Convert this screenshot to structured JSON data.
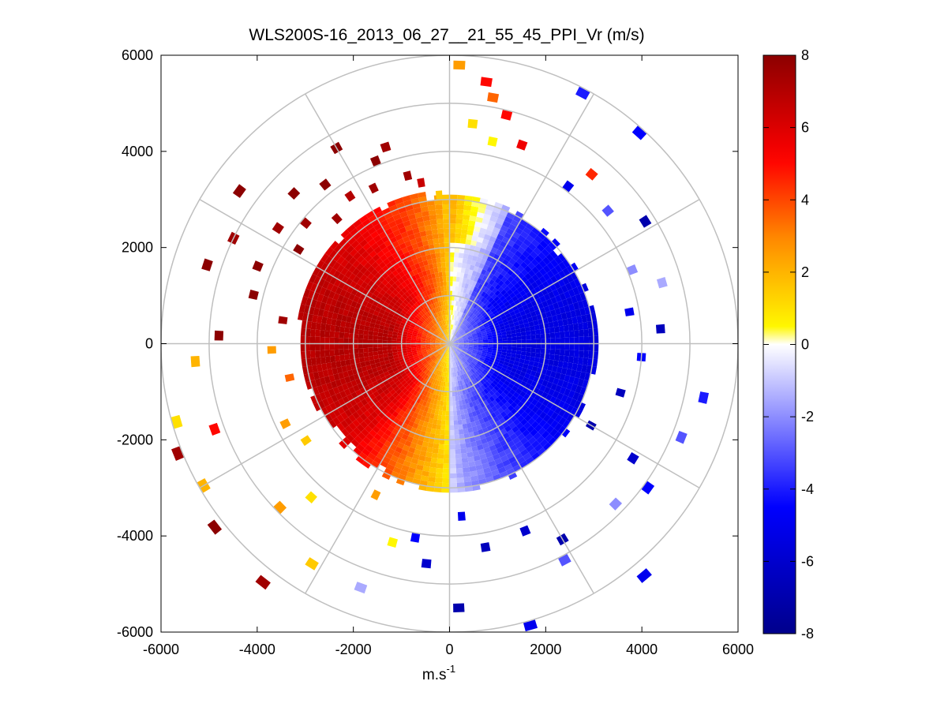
{
  "chart_data": {
    "type": "heatmap",
    "subtype": "polar PPI radial velocity scan",
    "title": "WLS200S-16_2013_06_27__21_55_45_PPI_Vr (m/s)",
    "xlabel": "m.s",
    "xlabel_superscript": "-1",
    "ylabel": "",
    "xlim": [
      -6000,
      6000
    ],
    "ylim": [
      -6000,
      6000
    ],
    "x_ticks": [
      "-6000",
      "-4000",
      "-2000",
      "0",
      "2000",
      "4000",
      "6000"
    ],
    "y_ticks": [
      "6000",
      "4000",
      "2000",
      "0",
      "-2000",
      "-4000",
      "-6000"
    ],
    "x_tick_values": [
      -6000,
      -4000,
      -2000,
      0,
      2000,
      4000,
      6000
    ],
    "y_tick_values": [
      6000,
      4000,
      2000,
      0,
      -2000,
      -4000,
      -6000
    ],
    "range_rings_m": [
      1000,
      2000,
      3000,
      4000,
      5000,
      6000
    ],
    "spoke_angles_deg": [
      0,
      30,
      60,
      90,
      120,
      150,
      180,
      210,
      240,
      270,
      300,
      330
    ],
    "grid": true,
    "colorbar": {
      "min": -8,
      "max": 8,
      "ticks": [
        "8",
        "6",
        "4",
        "2",
        "0",
        "-2",
        "-4",
        "-6",
        "-8"
      ],
      "tick_values": [
        8,
        6,
        4,
        2,
        0,
        -2,
        -4,
        -6,
        -8
      ],
      "colors": [
        "#00008c",
        "#0000ff",
        "#ffffff",
        "#ffff00",
        "#ff8c00",
        "#ff0000",
        "#8c0000"
      ]
    },
    "dense_region": {
      "max_range_m": 3050,
      "description": "positive velocities on the west/north-west half, negative on the east/south-east half",
      "zero_line_azimuth_deg": [
        0,
        180
      ],
      "max_velocity_west_mps": 7,
      "min_velocity_east_mps": -5.5
    },
    "sparse_gates": [
      {
        "az": 2,
        "r": 5800,
        "v": 2.5
      },
      {
        "az": 6,
        "r": 4600,
        "v": 1
      },
      {
        "az": 8,
        "r": 5500,
        "v": 5
      },
      {
        "az": 10,
        "r": 5200,
        "v": 3.5
      },
      {
        "az": 12,
        "r": 4300,
        "v": 0.5
      },
      {
        "az": 14,
        "r": 4900,
        "v": 5
      },
      {
        "az": 20,
        "r": 4400,
        "v": 5.5
      },
      {
        "az": 28,
        "r": 5900,
        "v": -4
      },
      {
        "az": 37,
        "r": 4100,
        "v": -5
      },
      {
        "az": 40,
        "r": 4600,
        "v": 4.5
      },
      {
        "az": 42,
        "r": 5900,
        "v": -4.5
      },
      {
        "az": 50,
        "r": 4300,
        "v": -3
      },
      {
        "az": 58,
        "r": 4800,
        "v": -7
      },
      {
        "az": 68,
        "r": 4100,
        "v": -2
      },
      {
        "az": 74,
        "r": 4600,
        "v": -1.5
      },
      {
        "az": 80,
        "r": 3800,
        "v": -5
      },
      {
        "az": 86,
        "r": 4400,
        "v": -6.5
      },
      {
        "az": 94,
        "r": 4000,
        "v": -4.5
      },
      {
        "az": 102,
        "r": 5400,
        "v": -4
      },
      {
        "az": 106,
        "r": 3700,
        "v": -6.5
      },
      {
        "az": 112,
        "r": 5200,
        "v": -3
      },
      {
        "az": 120,
        "r": 3400,
        "v": -7
      },
      {
        "az": 122,
        "r": 4500,
        "v": -6
      },
      {
        "az": 126,
        "r": 5100,
        "v": -4.5
      },
      {
        "az": 134,
        "r": 4800,
        "v": -2
      },
      {
        "az": 140,
        "r": 6300,
        "v": -5
      },
      {
        "az": 150,
        "r": 4700,
        "v": -7
      },
      {
        "az": 152,
        "r": 5100,
        "v": -3
      },
      {
        "az": 158,
        "r": 4200,
        "v": -6
      },
      {
        "az": 164,
        "r": 6100,
        "v": -5
      },
      {
        "az": 170,
        "r": 4300,
        "v": -6.5
      },
      {
        "az": 176,
        "r": 3600,
        "v": -5
      },
      {
        "az": 178,
        "r": 5500,
        "v": -7
      },
      {
        "az": 186,
        "r": 4600,
        "v": -6
      },
      {
        "az": 190,
        "r": 4100,
        "v": -4.5
      },
      {
        "az": 196,
        "r": 4300,
        "v": 0.5
      },
      {
        "az": 200,
        "r": 5400,
        "v": -1.5
      },
      {
        "az": 206,
        "r": 3500,
        "v": 2.5
      },
      {
        "az": 212,
        "r": 5400,
        "v": 1.5
      },
      {
        "az": 218,
        "r": 6300,
        "v": 7.5
      },
      {
        "az": 222,
        "r": 4300,
        "v": 1
      },
      {
        "az": 226,
        "r": 4900,
        "v": 2.5
      },
      {
        "az": 232,
        "r": 6200,
        "v": 8
      },
      {
        "az": 236,
        "r": 3600,
        "v": 1.5
      },
      {
        "az": 240,
        "r": 5900,
        "v": 2
      },
      {
        "az": 244,
        "r": 3800,
        "v": 2.5
      },
      {
        "az": 248,
        "r": 6100,
        "v": 7.5
      },
      {
        "az": 250,
        "r": 5200,
        "v": 5
      },
      {
        "az": 254,
        "r": 5900,
        "v": 1
      },
      {
        "az": 258,
        "r": 3400,
        "v": 3.5
      },
      {
        "az": 266,
        "r": 5300,
        "v": 2
      },
      {
        "az": 268,
        "r": 3700,
        "v": 2.5
      },
      {
        "az": 272,
        "r": 4800,
        "v": 8
      },
      {
        "az": 278,
        "r": 3500,
        "v": 7.5
      },
      {
        "az": 284,
        "r": 4200,
        "v": 8
      },
      {
        "az": 288,
        "r": 5300,
        "v": 8
      },
      {
        "az": 292,
        "r": 4300,
        "v": 8
      },
      {
        "az": 296,
        "r": 5000,
        "v": 7.5
      },
      {
        "az": 302,
        "r": 3700,
        "v": 8
      },
      {
        "az": 304,
        "r": 4300,
        "v": 7.5
      },
      {
        "az": 306,
        "r": 5400,
        "v": 8
      },
      {
        "az": 310,
        "r": 3900,
        "v": 7.5
      },
      {
        "az": 314,
        "r": 4500,
        "v": 8
      },
      {
        "az": 318,
        "r": 3500,
        "v": 7.5
      },
      {
        "az": 322,
        "r": 4200,
        "v": 8
      },
      {
        "az": 326,
        "r": 3700,
        "v": 7
      },
      {
        "az": 330,
        "r": 4700,
        "v": 8
      },
      {
        "az": 334,
        "r": 3600,
        "v": 7.5
      },
      {
        "az": 338,
        "r": 4100,
        "v": 8
      },
      {
        "az": 342,
        "r": 4300,
        "v": 7.5
      },
      {
        "az": 346,
        "r": 3600,
        "v": 7.5
      },
      {
        "az": 350,
        "r": 3400,
        "v": 6.5
      },
      {
        "az": 356,
        "r": 3100,
        "v": 1.5
      }
    ]
  }
}
